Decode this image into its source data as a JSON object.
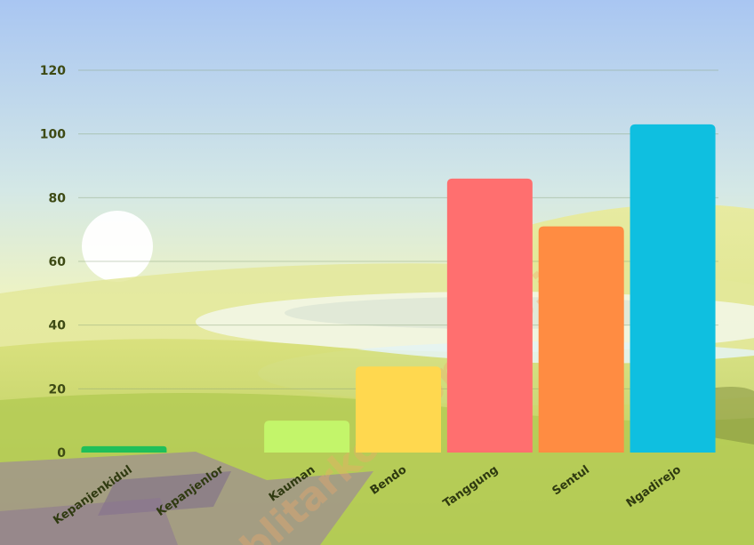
{
  "chart_data": {
    "type": "bar",
    "categories": [
      "Kepanjenkidul",
      "Kepanjenlor",
      "Kauman",
      "Bendo",
      "Tanggung",
      "Sentul",
      "Ngadirejo"
    ],
    "values": [
      2,
      0,
      10,
      27,
      86,
      71,
      103
    ],
    "colors": [
      "#1fbf5a",
      "#9bd35a",
      "#c3f56a",
      "#ffd84f",
      "#ff6f6f",
      "#ff8c42",
      "#0fbfe0"
    ],
    "y_ticks": [
      0,
      20,
      40,
      60,
      80,
      100,
      120
    ],
    "ylim": [
      0,
      120
    ],
    "grid": true,
    "title": "",
    "xlabel": "",
    "ylabel": ""
  },
  "watermark": "blitarkota.bps.go.id"
}
